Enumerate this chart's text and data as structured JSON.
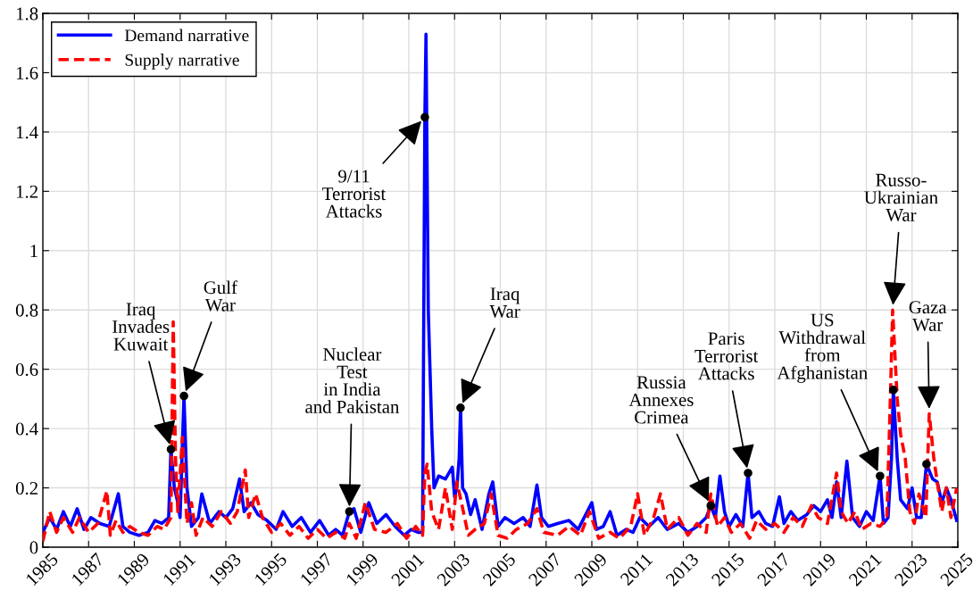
{
  "chart_data": {
    "type": "line",
    "xlim": [
      1985,
      2025
    ],
    "ylim": [
      0,
      1.8
    ],
    "xticks": [
      1985,
      1987,
      1989,
      1991,
      1993,
      1995,
      1997,
      1999,
      2001,
      2003,
      2005,
      2007,
      2009,
      2011,
      2013,
      2015,
      2017,
      2019,
      2021,
      2023,
      2025
    ],
    "yticks": [
      0,
      0.2,
      0.4,
      0.6,
      0.8,
      1,
      1.2,
      1.4,
      1.6,
      1.8
    ],
    "grid": true,
    "legend": "top left",
    "series": [
      {
        "name": "Demand narrative",
        "color": "#0000ff",
        "line_style": "solid",
        "x": [
          1985.0,
          1985.3,
          1985.6,
          1985.9,
          1986.2,
          1986.5,
          1986.8,
          1987.1,
          1987.5,
          1987.9,
          1988.3,
          1988.5,
          1988.8,
          1989.2,
          1989.6,
          1989.9,
          1990.2,
          1990.5,
          1990.6,
          1990.75,
          1990.9,
          1991.0,
          1991.17,
          1991.3,
          1991.5,
          1991.8,
          1991.95,
          1992.3,
          1992.7,
          1993.0,
          1993.3,
          1993.6,
          1993.8,
          1994.1,
          1994.4,
          1994.8,
          1995.2,
          1995.5,
          1995.9,
          1996.3,
          1996.7,
          1997.1,
          1997.5,
          1997.8,
          1998.1,
          1998.4,
          1998.6,
          1998.9,
          1999.25,
          1999.6,
          2000.0,
          2000.4,
          2000.8,
          2001.1,
          2001.4,
          2001.6,
          2001.7,
          2001.75,
          2001.85,
          2002.0,
          2002.1,
          2002.3,
          2002.6,
          2002.9,
          2003.0,
          2003.1,
          2003.2,
          2003.26,
          2003.35,
          2003.5,
          2003.7,
          2003.9,
          2004.2,
          2004.5,
          2004.67,
          2004.9,
          2005.2,
          2005.6,
          2006.0,
          2006.3,
          2006.6,
          2006.8,
          2007.1,
          2007.5,
          2008.0,
          2008.4,
          2009.0,
          2009.2,
          2009.5,
          2009.8,
          2010.1,
          2010.5,
          2010.8,
          2011.1,
          2011.5,
          2011.9,
          2012.3,
          2012.8,
          2013.2,
          2013.6,
          2014.0,
          2014.2,
          2014.4,
          2014.6,
          2014.8,
          2015.0,
          2015.3,
          2015.6,
          2015.83,
          2016.0,
          2016.3,
          2016.6,
          2016.9,
          2017.2,
          2017.4,
          2017.7,
          2018.0,
          2018.4,
          2018.7,
          2019.0,
          2019.3,
          2019.5,
          2019.7,
          2019.9,
          2020.15,
          2020.4,
          2020.7,
          2021.0,
          2021.3,
          2021.6,
          2021.75,
          2021.95,
          2022.1,
          2022.18,
          2022.35,
          2022.5,
          2022.8,
          2023.0,
          2023.2,
          2023.4,
          2023.63,
          2023.9,
          2024.1,
          2024.3,
          2024.5,
          2024.7,
          2024.95
        ],
        "values": [
          0.05,
          0.1,
          0.06,
          0.12,
          0.07,
          0.13,
          0.06,
          0.1,
          0.08,
          0.07,
          0.18,
          0.07,
          0.05,
          0.04,
          0.05,
          0.09,
          0.08,
          0.1,
          0.33,
          0.2,
          0.15,
          0.1,
          0.51,
          0.2,
          0.07,
          0.1,
          0.18,
          0.08,
          0.12,
          0.1,
          0.13,
          0.23,
          0.12,
          0.15,
          0.11,
          0.09,
          0.06,
          0.12,
          0.07,
          0.1,
          0.05,
          0.09,
          0.04,
          0.06,
          0.04,
          0.12,
          0.13,
          0.05,
          0.15,
          0.08,
          0.11,
          0.07,
          0.04,
          0.06,
          0.05,
          0.05,
          1.45,
          1.73,
          0.8,
          0.4,
          0.2,
          0.24,
          0.23,
          0.27,
          0.17,
          0.2,
          0.3,
          0.47,
          0.2,
          0.18,
          0.11,
          0.16,
          0.06,
          0.18,
          0.22,
          0.07,
          0.1,
          0.08,
          0.1,
          0.07,
          0.21,
          0.1,
          0.07,
          0.08,
          0.09,
          0.06,
          0.15,
          0.06,
          0.07,
          0.12,
          0.04,
          0.06,
          0.05,
          0.1,
          0.07,
          0.1,
          0.06,
          0.08,
          0.05,
          0.07,
          0.1,
          0.14,
          0.1,
          0.24,
          0.12,
          0.07,
          0.11,
          0.07,
          0.25,
          0.1,
          0.12,
          0.08,
          0.07,
          0.17,
          0.08,
          0.12,
          0.09,
          0.11,
          0.14,
          0.12,
          0.16,
          0.1,
          0.22,
          0.1,
          0.29,
          0.1,
          0.07,
          0.12,
          0.09,
          0.24,
          0.08,
          0.1,
          0.3,
          0.53,
          0.3,
          0.16,
          0.13,
          0.2,
          0.1,
          0.1,
          0.28,
          0.23,
          0.22,
          0.15,
          0.2,
          0.16,
          0.09
        ]
      },
      {
        "name": "Supply narrative",
        "color": "#ff0000",
        "line_style": "dashed",
        "x": [
          1985.0,
          1985.3,
          1985.6,
          1985.9,
          1986.3,
          1986.6,
          1987.0,
          1987.4,
          1987.8,
          1987.95,
          1988.2,
          1988.5,
          1988.8,
          1989.2,
          1989.6,
          1990.0,
          1990.3,
          1990.6,
          1990.7,
          1990.8,
          1990.9,
          1991.1,
          1991.3,
          1991.5,
          1991.7,
          1992.0,
          1992.4,
          1992.8,
          1993.2,
          1993.5,
          1993.85,
          1994.0,
          1994.3,
          1994.6,
          1995.0,
          1995.4,
          1995.8,
          1996.2,
          1996.6,
          1997.0,
          1997.4,
          1997.8,
          1998.2,
          1998.4,
          1998.7,
          1999.1,
          1999.5,
          2000.0,
          2000.5,
          2000.9,
          2001.3,
          2001.6,
          2001.7,
          2001.8,
          2002.0,
          2002.3,
          2002.6,
          2002.9,
          2003.1,
          2003.3,
          2003.6,
          2003.9,
          2004.3,
          2004.6,
          2004.9,
          2005.3,
          2005.7,
          2006.2,
          2006.6,
          2006.9,
          2007.5,
          2008.0,
          2008.5,
          2008.9,
          2009.3,
          2009.8,
          2010.2,
          2010.7,
          2011.0,
          2011.3,
          2011.7,
          2012.0,
          2012.3,
          2012.8,
          2013.2,
          2013.6,
          2014.0,
          2014.2,
          2014.5,
          2014.8,
          2015.1,
          2015.5,
          2015.9,
          2016.2,
          2016.6,
          2017.0,
          2017.4,
          2017.8,
          2018.2,
          2018.6,
          2018.9,
          2019.3,
          2019.7,
          2019.9,
          2020.2,
          2020.5,
          2020.8,
          2021.2,
          2021.6,
          2021.9,
          2022.05,
          2022.15,
          2022.35,
          2022.5,
          2022.7,
          2022.9,
          2023.1,
          2023.3,
          2023.6,
          2023.75,
          2023.95,
          2024.1,
          2024.3,
          2024.5,
          2024.7,
          2024.95
        ],
        "values": [
          0.02,
          0.12,
          0.05,
          0.1,
          0.05,
          0.1,
          0.05,
          0.08,
          0.19,
          0.04,
          0.09,
          0.05,
          0.07,
          0.05,
          0.04,
          0.07,
          0.06,
          0.1,
          0.76,
          0.3,
          0.12,
          0.37,
          0.08,
          0.15,
          0.04,
          0.1,
          0.07,
          0.12,
          0.08,
          0.12,
          0.26,
          0.1,
          0.18,
          0.1,
          0.05,
          0.08,
          0.04,
          0.07,
          0.03,
          0.06,
          0.03,
          0.05,
          0.03,
          0.08,
          0.03,
          0.15,
          0.06,
          0.05,
          0.08,
          0.03,
          0.07,
          0.04,
          0.25,
          0.28,
          0.12,
          0.06,
          0.2,
          0.06,
          0.22,
          0.15,
          0.04,
          0.06,
          0.08,
          0.18,
          0.04,
          0.03,
          0.06,
          0.08,
          0.13,
          0.05,
          0.04,
          0.07,
          0.04,
          0.12,
          0.03,
          0.05,
          0.03,
          0.07,
          0.18,
          0.04,
          0.1,
          0.18,
          0.06,
          0.1,
          0.04,
          0.08,
          0.05,
          0.18,
          0.07,
          0.1,
          0.05,
          0.08,
          0.03,
          0.09,
          0.06,
          0.08,
          0.05,
          0.1,
          0.07,
          0.14,
          0.1,
          0.08,
          0.25,
          0.12,
          0.08,
          0.12,
          0.06,
          0.08,
          0.07,
          0.1,
          0.5,
          0.8,
          0.5,
          0.38,
          0.3,
          0.12,
          0.08,
          0.18,
          0.1,
          0.45,
          0.3,
          0.22,
          0.12,
          0.2,
          0.1,
          0.2
        ]
      },
      {
        "type": "scatter",
        "color": "#000000",
        "marker": "circle",
        "x": [
          1990.6,
          1991.17,
          2001.7,
          1998.4,
          2003.26,
          2014.2,
          2015.83,
          2021.6,
          2022.18,
          2023.63
        ],
        "values": [
          0.33,
          0.51,
          1.45,
          0.12,
          0.47,
          0.14,
          0.25,
          0.24,
          0.53,
          0.28
        ]
      }
    ],
    "annotations": [
      {
        "text": "Iraq\nInvades\nKuwait",
        "x": 1990.6,
        "y": 0.33
      },
      {
        "text": "Gulf\nWar",
        "x": 1991.17,
        "y": 0.51
      },
      {
        "text": "9/11\nTerrorist\nAttacks",
        "x": 2001.7,
        "y": 1.45
      },
      {
        "text": "Nuclear\nTest\nin India\nand Pakistan",
        "x": 1998.4,
        "y": 0.12
      },
      {
        "text": "Iraq\nWar",
        "x": 2003.26,
        "y": 0.47
      },
      {
        "text": "Russia\nAnnexes\nCrimea",
        "x": 2014.2,
        "y": 0.14
      },
      {
        "text": "Paris\nTerrorist\nAttacks",
        "x": 2015.83,
        "y": 0.25
      },
      {
        "text": "US\nWithdrawal\nfrom\nAfghanistan",
        "x": 2021.6,
        "y": 0.24
      },
      {
        "text": "Russo-\nUkrainian\nWar",
        "x": 2022.15,
        "y": 0.8
      },
      {
        "text": "Gaza\nWar",
        "x": 2023.75,
        "y": 0.45
      }
    ]
  }
}
